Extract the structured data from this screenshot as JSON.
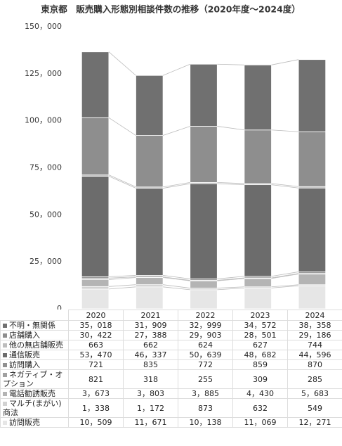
{
  "chart_data": {
    "type": "stacked-bar",
    "title": "東京都　販売購入形態別相談件数の推移（2020年度～2024度）",
    "categories": [
      "2020",
      "2021",
      "2022",
      "2023",
      "2024"
    ],
    "ylim": [
      0,
      150000
    ],
    "yticks": [
      0,
      {
        "value": 25000,
        "label": "25，000"
      },
      {
        "value": 50000,
        "label": "50，000"
      },
      {
        "value": 75000,
        "label": "75，000"
      },
      {
        "value": 100000,
        "label": "100，000"
      },
      {
        "value": 125000,
        "label": "125，000"
      },
      {
        "value": 150000,
        "label": "150，000"
      }
    ],
    "grid": false,
    "series": [
      {
        "name": "訪問販売",
        "color": "#e6e6e6",
        "values": [
          10509,
          11671,
          10138,
          11069,
          12271
        ],
        "value_labels": [
          "10，509",
          "11，671",
          "10，138",
          "11，069",
          "12，271"
        ]
      },
      {
        "name": "マルチ(まがい)商法",
        "color": "#d2d2d2",
        "values": [
          1338,
          1172,
          873,
          632,
          549
        ],
        "value_labels": [
          "1，338",
          "1，172",
          "873",
          "632",
          "549"
        ]
      },
      {
        "name": "電話勧誘販売",
        "color": "#b4b4b4",
        "values": [
          3673,
          3803,
          3885,
          4430,
          5683
        ],
        "value_labels": [
          "3，673",
          "3，803",
          "3，885",
          "4，430",
          "5，683"
        ]
      },
      {
        "name": "ネガティブ・オプション",
        "color": "#a0a0a0",
        "values": [
          821,
          318,
          255,
          309,
          285
        ],
        "value_labels": [
          "821",
          "318",
          "255",
          "309",
          "285"
        ]
      },
      {
        "name": "訪問購入",
        "color": "#909090",
        "values": [
          721,
          835,
          772,
          859,
          870
        ],
        "value_labels": [
          "721",
          "835",
          "772",
          "859",
          "870"
        ]
      },
      {
        "name": "通信販売",
        "color": "#6c6c6c",
        "values": [
          53470,
          46337,
          50639,
          48682,
          44596
        ],
        "value_labels": [
          "53，470",
          "46，337",
          "50，639",
          "48，682",
          "44，596"
        ]
      },
      {
        "name": "他の無店舗販売",
        "color": "#bdbdbd",
        "values": [
          663,
          662,
          624,
          627,
          744
        ],
        "value_labels": [
          "663",
          "662",
          "624",
          "627",
          "744"
        ]
      },
      {
        "name": "店舗購入",
        "color": "#8e8e8e",
        "values": [
          30422,
          27388,
          29903,
          28501,
          29186
        ],
        "value_labels": [
          "30，422",
          "27，388",
          "29，903",
          "28，501",
          "29，186"
        ]
      },
      {
        "name": "不明・無関係",
        "color": "#707070",
        "values": [
          35018,
          31909,
          32999,
          34572,
          38358
        ],
        "value_labels": [
          "35，018",
          "31，909",
          "32，999",
          "34，572",
          "38，358"
        ]
      }
    ]
  }
}
